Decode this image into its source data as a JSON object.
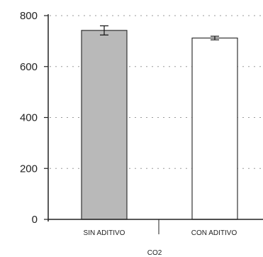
{
  "chart_data": {
    "type": "bar",
    "categories": [
      "SIN ADITIVO",
      "CON ADITIVO"
    ],
    "values": [
      742,
      712
    ],
    "errors": [
      18,
      7
    ],
    "xlabel": "CO2",
    "ylabel": "",
    "ylim": [
      0,
      800
    ],
    "yticks": [
      0,
      200,
      400,
      600,
      800
    ],
    "ytick_labels": [
      "0",
      "200",
      "400",
      "600",
      "800"
    ],
    "grid": true,
    "colors": {
      "bar_1": "#b9b9b9",
      "bar_2": "#ffffff",
      "edge": "#333333",
      "grid": "#9a9a9a"
    }
  }
}
